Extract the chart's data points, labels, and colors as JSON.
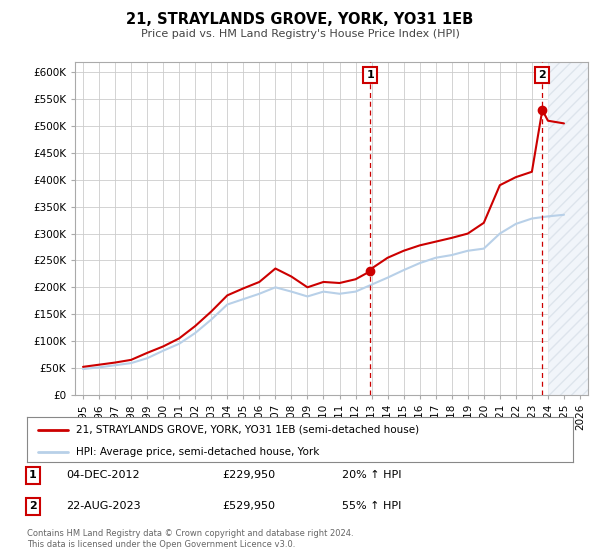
{
  "title": "21, STRAYLANDS GROVE, YORK, YO31 1EB",
  "subtitle": "Price paid vs. HM Land Registry's House Price Index (HPI)",
  "ylabel_ticks": [
    0,
    50000,
    100000,
    150000,
    200000,
    250000,
    300000,
    350000,
    400000,
    450000,
    500000,
    550000,
    600000
  ],
  "ylabel_labels": [
    "£0",
    "£50K",
    "£100K",
    "£150K",
    "£200K",
    "£250K",
    "£300K",
    "£350K",
    "£400K",
    "£450K",
    "£500K",
    "£550K",
    "£600K"
  ],
  "ylim": [
    0,
    620000
  ],
  "xlim_min": 1994.5,
  "xlim_max": 2026.5,
  "hpi_color": "#b8d0e8",
  "property_color": "#cc0000",
  "hpi_years": [
    1995,
    1996,
    1997,
    1998,
    1999,
    2000,
    2001,
    2002,
    2003,
    2004,
    2005,
    2006,
    2007,
    2008,
    2009,
    2010,
    2011,
    2012,
    2013,
    2014,
    2015,
    2016,
    2017,
    2018,
    2019,
    2020,
    2021,
    2022,
    2023,
    2024,
    2025
  ],
  "hpi_values": [
    48000,
    51000,
    55000,
    59000,
    68000,
    82000,
    95000,
    115000,
    140000,
    168000,
    178000,
    188000,
    200000,
    192000,
    183000,
    192000,
    188000,
    192000,
    205000,
    218000,
    232000,
    245000,
    255000,
    260000,
    268000,
    272000,
    300000,
    318000,
    328000,
    332000,
    335000
  ],
  "prop_years": [
    1995,
    1996,
    1997,
    1998,
    1999,
    2000,
    2001,
    2002,
    2003,
    2004,
    2005,
    2006,
    2007,
    2008,
    2009,
    2010,
    2011,
    2012,
    2012.92,
    2013,
    2014,
    2015,
    2016,
    2017,
    2018,
    2019,
    2020,
    2021,
    2022,
    2023,
    2023.65,
    2024,
    2025
  ],
  "prop_values": [
    52000,
    56000,
    60000,
    65000,
    78000,
    90000,
    105000,
    128000,
    155000,
    185000,
    198000,
    210000,
    235000,
    220000,
    200000,
    210000,
    208000,
    215000,
    229950,
    235000,
    255000,
    268000,
    278000,
    285000,
    292000,
    300000,
    320000,
    390000,
    405000,
    415000,
    529950,
    510000,
    505000
  ],
  "sale1_x": 2012.92,
  "sale1_y": 229950,
  "sale2_x": 2023.65,
  "sale2_y": 529950,
  "hatch_start": 2024.0,
  "legend_line1": "21, STRAYLANDS GROVE, YORK, YO31 1EB (semi-detached house)",
  "legend_line2": "HPI: Average price, semi-detached house, York",
  "table_rows": [
    {
      "num": "1",
      "date": "04-DEC-2012",
      "price": "£229,950",
      "change": "20% ↑ HPI"
    },
    {
      "num": "2",
      "date": "22-AUG-2023",
      "price": "£529,950",
      "change": "55% ↑ HPI"
    }
  ],
  "footnote": "Contains HM Land Registry data © Crown copyright and database right 2024.\nThis data is licensed under the Open Government Licence v3.0.",
  "xtick_years": [
    1995,
    1996,
    1997,
    1998,
    1999,
    2000,
    2001,
    2002,
    2003,
    2004,
    2005,
    2006,
    2007,
    2008,
    2009,
    2010,
    2011,
    2012,
    2013,
    2014,
    2015,
    2016,
    2017,
    2018,
    2019,
    2020,
    2021,
    2022,
    2023,
    2024,
    2025,
    2026
  ]
}
